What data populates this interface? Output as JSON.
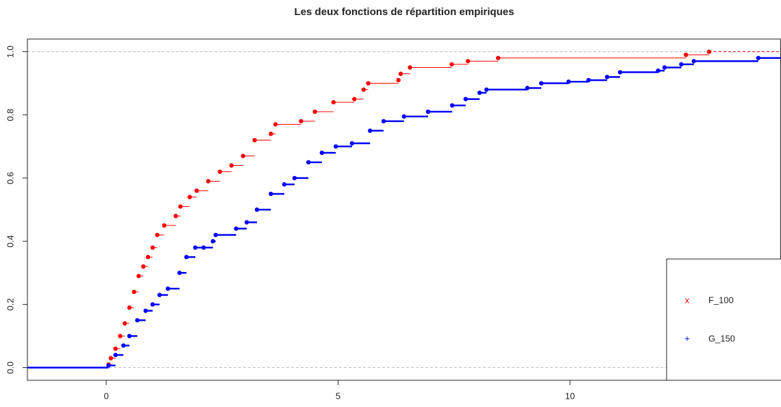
{
  "chart_data": {
    "type": "step",
    "title": "Les deux fonctions de répartition empiriques",
    "xlim": [
      -1.7,
      14.55
    ],
    "ylim": [
      -0.04,
      1.04
    ],
    "xticks": [
      0,
      5,
      10
    ],
    "yticks": [
      {
        "value": 0,
        "label": "0.0"
      },
      0.2,
      0.4,
      0.6,
      0.8,
      {
        "value": 1,
        "label": "1.0"
      }
    ],
    "hlines": [
      0,
      1
    ],
    "series": [
      {
        "name": "F_100",
        "color": "#ff0000",
        "symbol": "x",
        "x": [
          0.05,
          0.1,
          0.2,
          0.3,
          0.4,
          0.5,
          0.6,
          0.7,
          0.8,
          0.9,
          1.0,
          1.1,
          1.25,
          1.5,
          1.6,
          1.8,
          1.95,
          2.2,
          2.45,
          2.7,
          2.95,
          3.2,
          3.55,
          3.65,
          4.2,
          4.5,
          4.9,
          5.35,
          5.55,
          5.65,
          6.3,
          6.35,
          6.55,
          7.45,
          7.8,
          8.45,
          12.5,
          13.0
        ],
        "values": [
          0.01,
          0.03,
          0.06,
          0.1,
          0.14,
          0.19,
          0.24,
          0.29,
          0.32,
          0.35,
          0.38,
          0.42,
          0.45,
          0.48,
          0.51,
          0.54,
          0.56,
          0.59,
          0.62,
          0.64,
          0.67,
          0.72,
          0.74,
          0.77,
          0.78,
          0.81,
          0.84,
          0.85,
          0.88,
          0.9,
          0.91,
          0.93,
          0.95,
          0.96,
          0.97,
          0.98,
          0.99,
          1.0
        ]
      },
      {
        "name": "G_150",
        "color": "#0000ff",
        "symbol": "+",
        "x": [
          0.05,
          0.2,
          0.37,
          0.5,
          0.67,
          0.85,
          1.0,
          1.15,
          1.33,
          1.58,
          1.73,
          1.92,
          2.1,
          2.3,
          2.36,
          2.8,
          3.03,
          3.25,
          3.55,
          3.84,
          4.06,
          4.36,
          4.65,
          4.95,
          5.3,
          5.69,
          5.98,
          6.42,
          6.94,
          7.46,
          7.75,
          8.05,
          8.2,
          9.08,
          9.38,
          9.97,
          10.4,
          10.8,
          11.08,
          11.9,
          12.04,
          12.4,
          12.67,
          14.06
        ],
        "values": [
          0.007,
          0.04,
          0.07,
          0.1,
          0.15,
          0.18,
          0.2,
          0.23,
          0.25,
          0.3,
          0.35,
          0.38,
          0.38,
          0.4,
          0.42,
          0.44,
          0.46,
          0.5,
          0.55,
          0.58,
          0.6,
          0.65,
          0.68,
          0.7,
          0.71,
          0.75,
          0.78,
          0.795,
          0.81,
          0.83,
          0.85,
          0.87,
          0.88,
          0.885,
          0.9,
          0.905,
          0.91,
          0.92,
          0.935,
          0.94,
          0.95,
          0.96,
          0.97,
          0.98
        ]
      }
    ],
    "legend": "right"
  }
}
